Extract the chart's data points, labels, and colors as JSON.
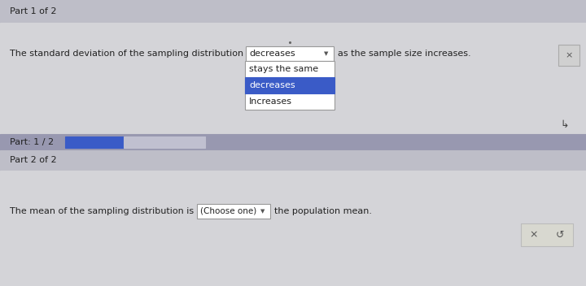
{
  "bg_color": "#c0c0c8",
  "header_bg": "#b8b8c0",
  "content_bg": "#d8d8d8",
  "part_bar_bg": "#a8aabb",
  "part1_label": "Part 1 of 2",
  "part2_label": "Part 2 of 2",
  "part_progress_label": "Part: 1 / 2",
  "question1_prefix": "The standard deviation of the sampling distribution",
  "question1_suffix": "as the sample size increases.",
  "dropdown1_selected": "decreases",
  "dropdown1_options": [
    "stays the same",
    "decreases",
    "Increases"
  ],
  "dropdown1_highlight": 1,
  "question2_prefix": "The mean of the sampling distribution is",
  "question2_dropdown": "(Choose one)",
  "question2_suffix": "the population mean.",
  "progress_blue": "#3a5bc7",
  "progress_gray": "#c0c0d0",
  "dropdown_selected_bg": "#ffffff",
  "dropdown_highlight_bg": "#3a5bc7",
  "dropdown_highlight_fg": "#ffffff",
  "dropdown_normal_fg": "#222222",
  "font_size_label": 8,
  "font_size_text": 8
}
